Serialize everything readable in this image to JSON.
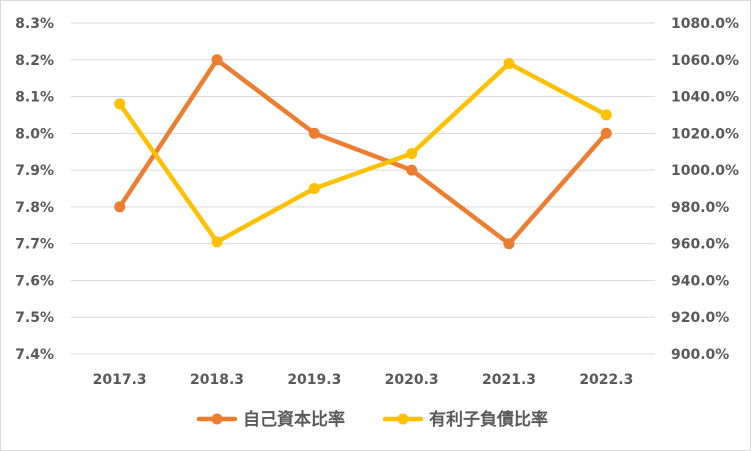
{
  "chart_data": {
    "type": "line",
    "categories": [
      "2017.3",
      "2018.3",
      "2019.3",
      "2020.3",
      "2021.3",
      "2022.3"
    ],
    "series": [
      {
        "name": "自己資本比率",
        "axis": "left",
        "color": "#ED7D31",
        "values": [
          7.8,
          8.2,
          8.0,
          7.9,
          7.7,
          8.0
        ]
      },
      {
        "name": "有利子負債比率",
        "axis": "right",
        "color": "#FFC000",
        "values": [
          1036,
          961,
          990,
          1009,
          1058,
          1030
        ]
      }
    ],
    "y_left": {
      "lim": [
        7.4,
        8.3
      ],
      "ticks": [
        "8.3%",
        "8.2%",
        "8.1%",
        "8.0%",
        "7.9%",
        "7.8%",
        "7.7%",
        "7.6%",
        "7.5%",
        "7.4%"
      ]
    },
    "y_right": {
      "lim": [
        900,
        1080
      ],
      "ticks": [
        "1080.0%",
        "1060.0%",
        "1040.0%",
        "1020.0%",
        "1000.0%",
        "980.0%",
        "960.0%",
        "940.0%",
        "920.0%",
        "900.0%"
      ]
    },
    "grid": true,
    "legend_position": "bottom",
    "title": "",
    "xlabel": "",
    "ylabel": ""
  }
}
